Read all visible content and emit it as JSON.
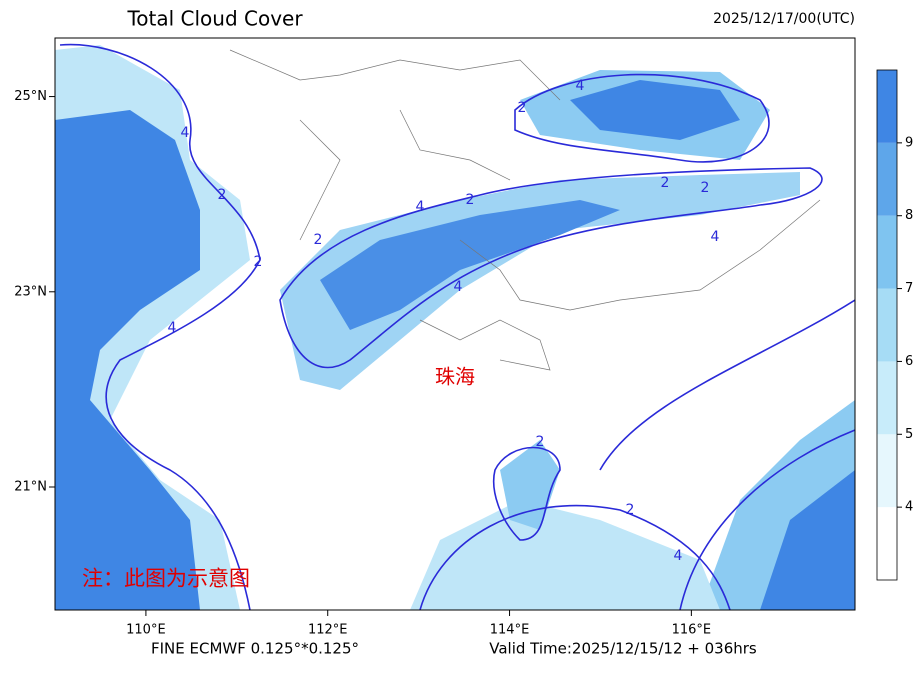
{
  "header": {
    "title": "Total Cloud Cover",
    "time": "2025/12/17/00(UTC)"
  },
  "map": {
    "xlim": [
      109,
      117.8
    ],
    "ylim": [
      19.74,
      25.6
    ],
    "lat_ticks": [
      {
        "value": 21,
        "label": "21°N"
      },
      {
        "value": 23,
        "label": "23°N"
      },
      {
        "value": 25,
        "label": "25°N"
      }
    ],
    "lon_ticks": [
      {
        "value": 110,
        "label": "110°E"
      },
      {
        "value": 112,
        "label": "112°E"
      },
      {
        "value": 114,
        "label": "114°E"
      },
      {
        "value": 116,
        "label": "116°E"
      }
    ],
    "place_label": "珠海",
    "note": "注：此图为示意图",
    "contour_labels": [
      4,
      2,
      2,
      4,
      2,
      4,
      2,
      4,
      2,
      4,
      2,
      2,
      4,
      2,
      2,
      4
    ]
  },
  "colorbar": {
    "range": [
      3,
      10
    ],
    "ticks": [
      4,
      5,
      6,
      7,
      8,
      9
    ]
  },
  "footer": {
    "model": "FINE ECMWF 0.125°*0.125°",
    "valid": "Valid Time:2025/12/15/12 + 036hrs"
  }
}
